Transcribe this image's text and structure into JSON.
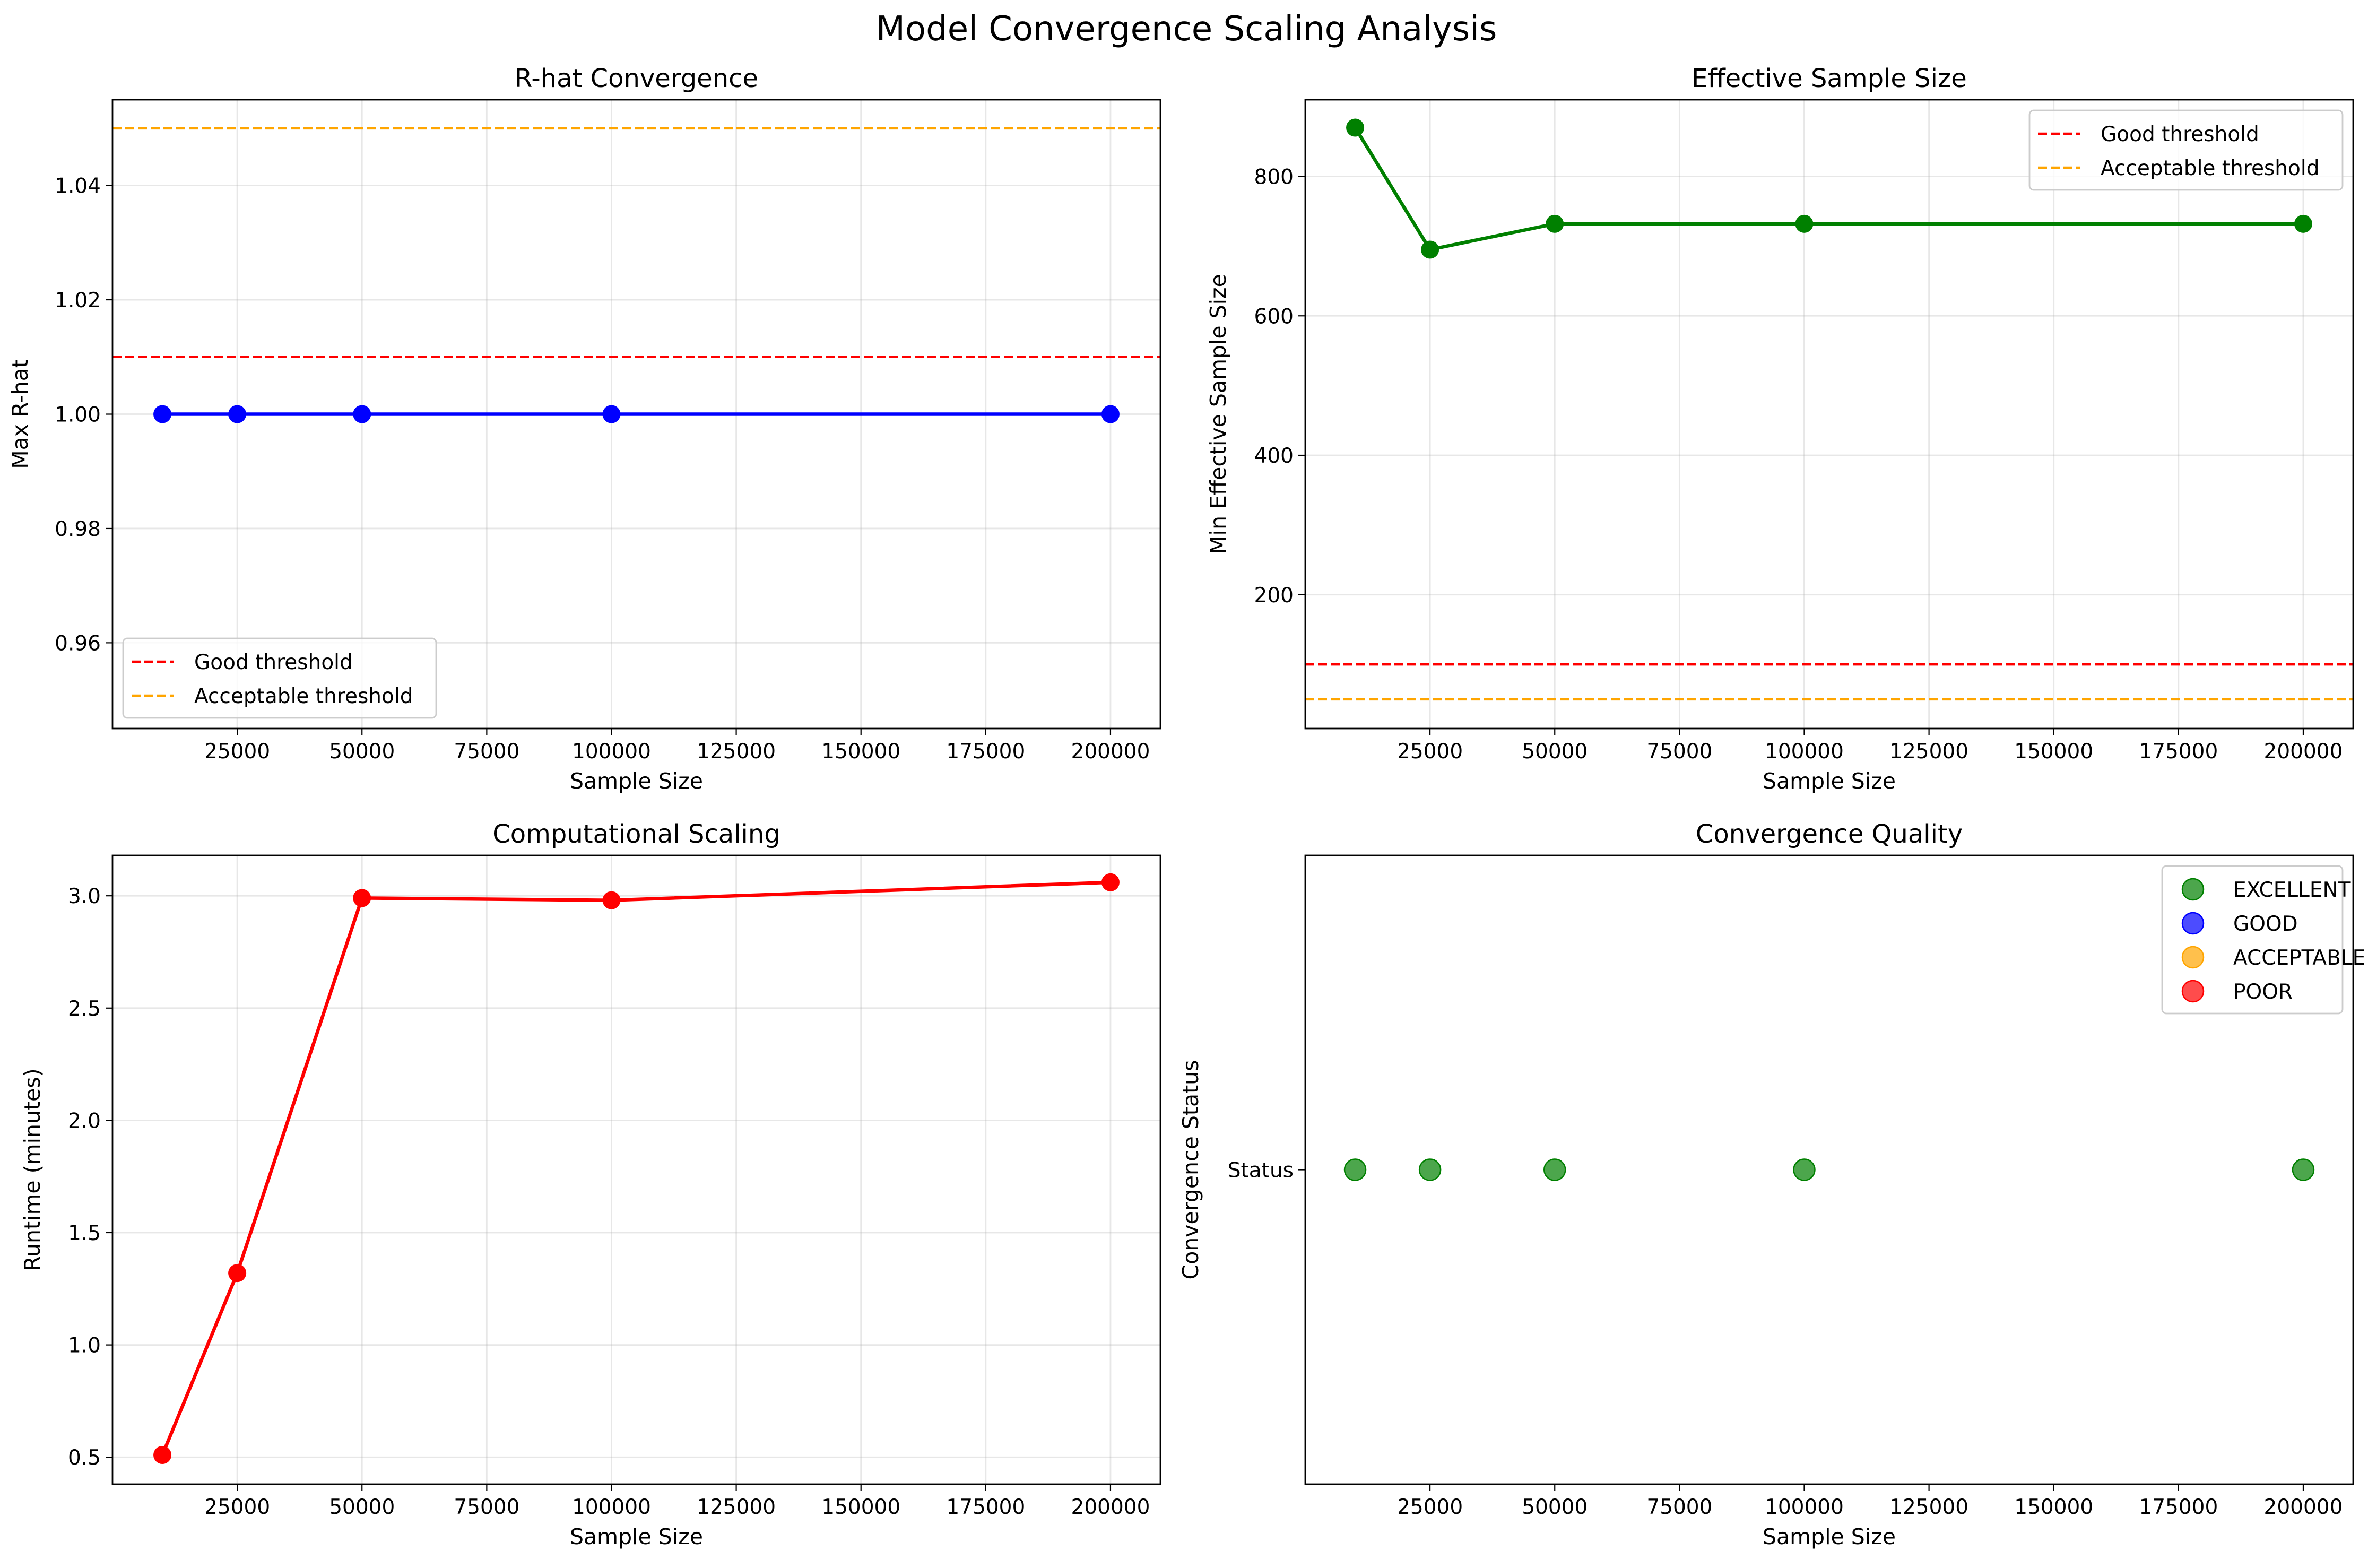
{
  "figure": {
    "title": "Model Convergence Scaling Analysis"
  },
  "chart_data": [
    {
      "id": "rhat",
      "type": "line",
      "title": "R-hat Convergence",
      "xlabel": "Sample Size",
      "ylabel": "Max R-hat",
      "xlim": [
        0,
        210000
      ],
      "ylim": [
        0.945,
        1.055
      ],
      "xticks": [
        25000,
        50000,
        75000,
        100000,
        125000,
        150000,
        175000,
        200000
      ],
      "yticks": [
        0.96,
        0.98,
        1.0,
        1.02,
        1.04
      ],
      "ytick_labels": [
        "0.96",
        "0.98",
        "1.00",
        "1.02",
        "1.04"
      ],
      "grid": true,
      "legend_position": "lower-left",
      "series": [
        {
          "x": [
            10000,
            25000,
            50000,
            100000,
            200000
          ],
          "y": [
            1.0,
            1.0,
            1.0,
            1.0,
            1.0
          ],
          "color": "#0000ff",
          "style": "line-marker"
        }
      ],
      "hlines": [
        {
          "name": "Good threshold",
          "y": 1.01,
          "color": "#ff0000"
        },
        {
          "name": "Acceptable threshold",
          "y": 1.05,
          "color": "#ffa500"
        }
      ]
    },
    {
      "id": "ess",
      "type": "line",
      "title": "Effective Sample Size",
      "xlabel": "Sample Size",
      "ylabel": "Min Effective Sample Size",
      "xlim": [
        0,
        210000
      ],
      "ylim": [
        8,
        910
      ],
      "xticks": [
        25000,
        50000,
        75000,
        100000,
        125000,
        150000,
        175000,
        200000
      ],
      "yticks": [
        200,
        400,
        600,
        800
      ],
      "ytick_labels": [
        "200",
        "400",
        "600",
        "800"
      ],
      "grid": true,
      "legend_position": "upper-right",
      "series": [
        {
          "x": [
            10000,
            25000,
            50000,
            100000,
            200000
          ],
          "y": [
            870,
            695,
            732,
            732,
            732
          ],
          "color": "#008000",
          "style": "line-marker"
        }
      ],
      "hlines": [
        {
          "name": "Good threshold",
          "y": 100,
          "color": "#ff0000"
        },
        {
          "name": "Acceptable threshold",
          "y": 50,
          "color": "#ffa500"
        }
      ]
    },
    {
      "id": "runtime",
      "type": "line",
      "title": "Computational Scaling",
      "xlabel": "Sample Size",
      "ylabel": "Runtime (minutes)",
      "xlim": [
        0,
        210000
      ],
      "ylim": [
        0.38,
        3.18
      ],
      "xticks": [
        25000,
        50000,
        75000,
        100000,
        125000,
        150000,
        175000,
        200000
      ],
      "yticks": [
        0.5,
        1.0,
        1.5,
        2.0,
        2.5,
        3.0
      ],
      "ytick_labels": [
        "0.5",
        "1.0",
        "1.5",
        "2.0",
        "2.5",
        "3.0"
      ],
      "grid": true,
      "series": [
        {
          "x": [
            10000,
            25000,
            50000,
            100000,
            200000
          ],
          "y": [
            0.51,
            1.32,
            2.99,
            2.98,
            3.06
          ],
          "color": "#ff0000",
          "style": "line-marker"
        }
      ],
      "hlines": []
    },
    {
      "id": "quality",
      "type": "scatter",
      "title": "Convergence Quality",
      "xlabel": "Sample Size",
      "ylabel": "Convergence Status",
      "xlim": [
        0,
        210000
      ],
      "ylim": [
        -0.55,
        0.55
      ],
      "xticks": [
        25000,
        50000,
        75000,
        100000,
        125000,
        150000,
        175000,
        200000
      ],
      "yticks": [
        0
      ],
      "ytick_labels": [
        "Status"
      ],
      "grid": false,
      "legend_position": "upper-right",
      "series": [
        {
          "name": "EXCELLENT",
          "color": "#008000",
          "x": [
            10000,
            25000,
            50000,
            100000,
            200000
          ],
          "y": [
            0,
            0,
            0,
            0,
            0
          ]
        },
        {
          "name": "GOOD",
          "color": "#0000ff",
          "x": [],
          "y": []
        },
        {
          "name": "ACCEPTABLE",
          "color": "#ffa500",
          "x": [],
          "y": []
        },
        {
          "name": "POOR",
          "color": "#ff0000",
          "x": [],
          "y": []
        }
      ],
      "hlines": []
    }
  ]
}
